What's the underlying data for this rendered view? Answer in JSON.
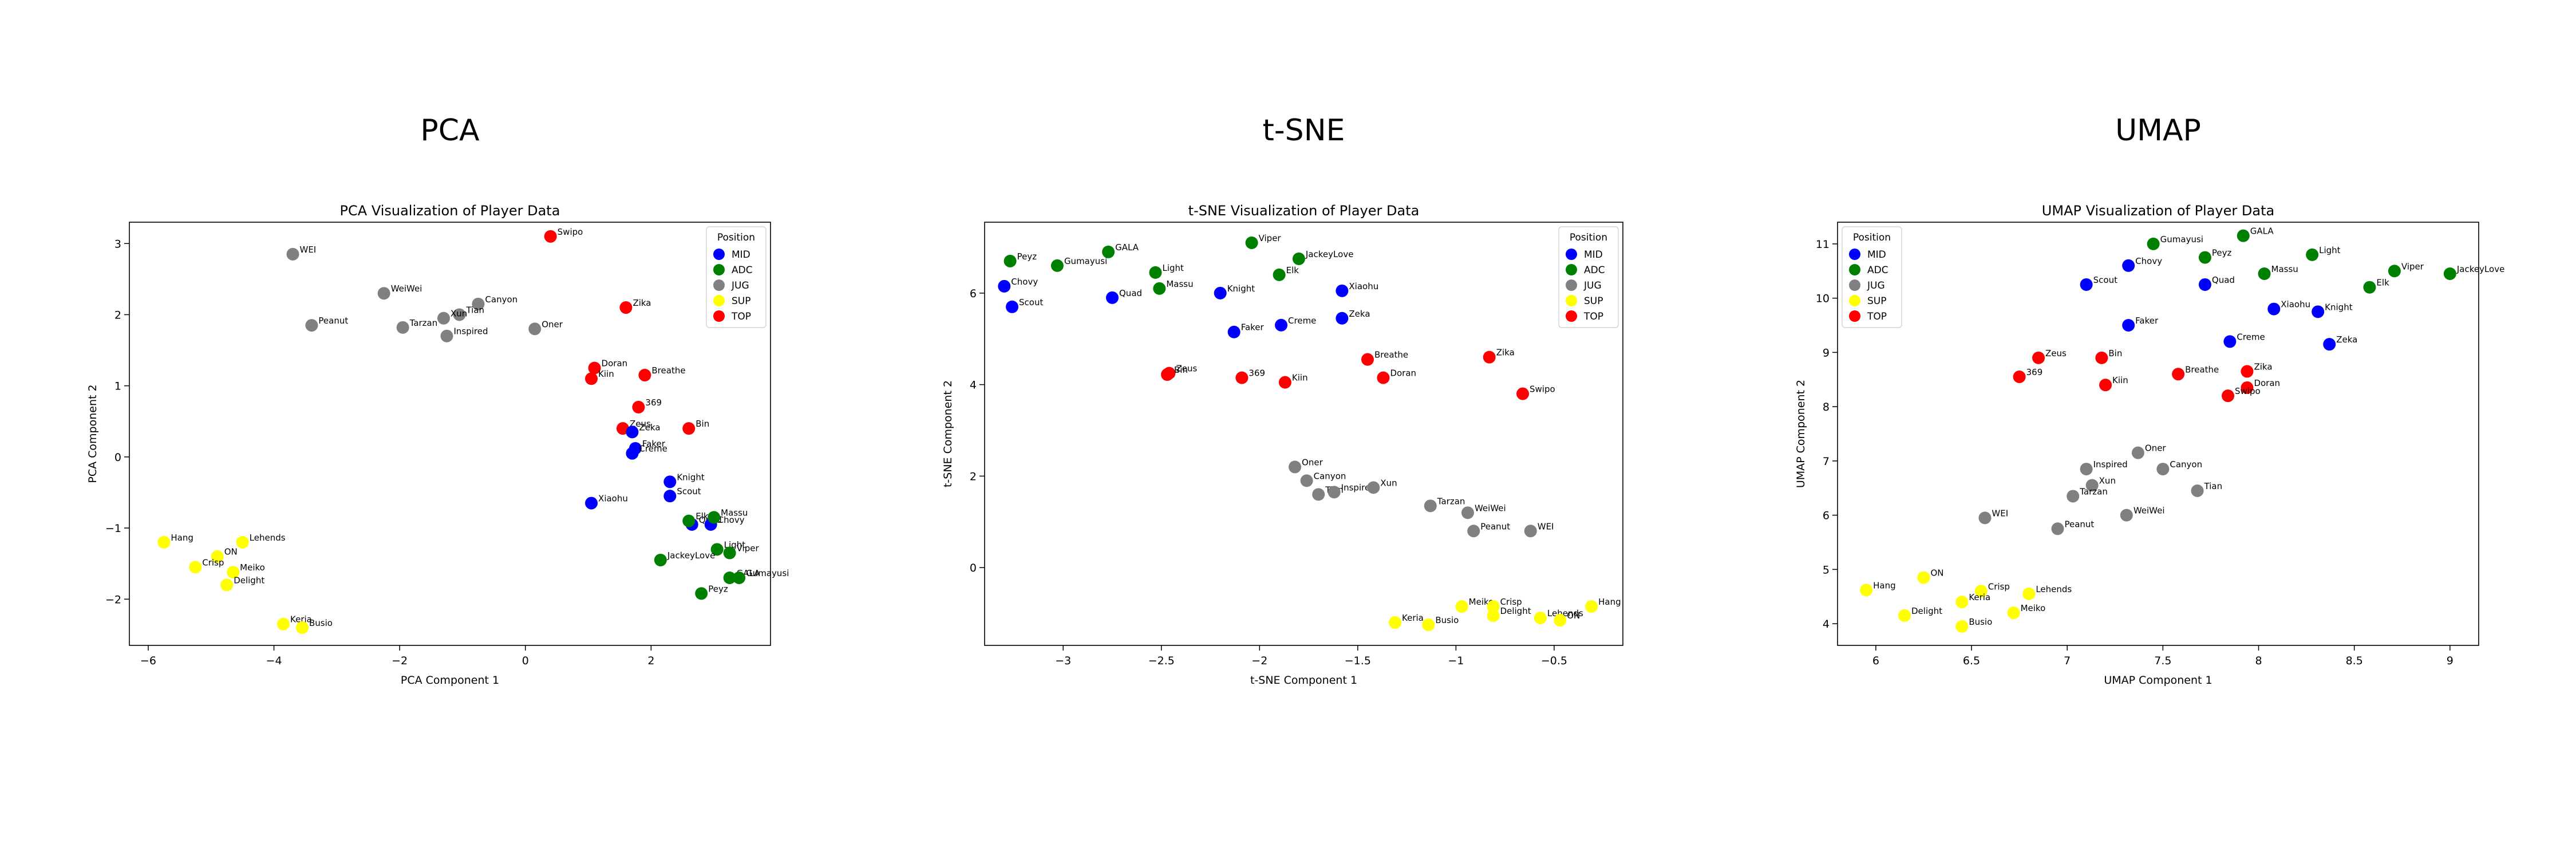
{
  "figures": [
    {
      "heading": "PCA"
    },
    {
      "heading": "t-SNE"
    },
    {
      "heading": "UMAP"
    }
  ],
  "colors": {
    "MID": "#0000ff",
    "ADC": "#008000",
    "JUG": "#808080",
    "SUP": "#ffff00",
    "TOP": "#ff0000"
  },
  "chart_data": [
    {
      "type": "scatter",
      "title": "PCA Visualization of Player Data",
      "xlabel": "PCA Component 1",
      "ylabel": "PCA Component 2",
      "xlim": [
        -6.3,
        3.9
      ],
      "ylim": [
        -2.65,
        3.3
      ],
      "xticks": [
        -6,
        -4,
        -2,
        0,
        2
      ],
      "yticks": [
        -2,
        -1,
        0,
        1,
        2,
        3
      ],
      "grid": false,
      "legend": {
        "title": "Position",
        "placement": "top-right"
      },
      "points": [
        {
          "label": "WEI",
          "x": -3.7,
          "y": 2.85,
          "position": "JUG"
        },
        {
          "label": "WeiWei",
          "x": -2.25,
          "y": 2.3,
          "position": "JUG"
        },
        {
          "label": "Canyon",
          "x": -0.75,
          "y": 2.15,
          "position": "JUG"
        },
        {
          "label": "Tian",
          "x": -1.05,
          "y": 2.0,
          "position": "JUG"
        },
        {
          "label": "Xun",
          "x": -1.3,
          "y": 1.95,
          "position": "JUG"
        },
        {
          "label": "Peanut",
          "x": -3.4,
          "y": 1.85,
          "position": "JUG"
        },
        {
          "label": "Tarzan",
          "x": -1.95,
          "y": 1.82,
          "position": "JUG"
        },
        {
          "label": "Oner",
          "x": 0.15,
          "y": 1.8,
          "position": "JUG"
        },
        {
          "label": "Inspired",
          "x": -1.25,
          "y": 1.7,
          "position": "JUG"
        },
        {
          "label": "Swipo",
          "x": 0.4,
          "y": 3.1,
          "position": "TOP"
        },
        {
          "label": "Zika",
          "x": 1.6,
          "y": 2.1,
          "position": "TOP"
        },
        {
          "label": "Doran",
          "x": 1.1,
          "y": 1.25,
          "position": "TOP"
        },
        {
          "label": "Kiin",
          "x": 1.05,
          "y": 1.1,
          "position": "TOP"
        },
        {
          "label": "Breathe",
          "x": 1.9,
          "y": 1.15,
          "position": "TOP"
        },
        {
          "label": "369",
          "x": 1.8,
          "y": 0.7,
          "position": "TOP"
        },
        {
          "label": "Bin",
          "x": 2.6,
          "y": 0.4,
          "position": "TOP"
        },
        {
          "label": "Zeus",
          "x": 1.55,
          "y": 0.4,
          "position": "TOP"
        },
        {
          "label": "Zeka",
          "x": 1.7,
          "y": 0.35,
          "position": "MID"
        },
        {
          "label": "Faker",
          "x": 1.75,
          "y": 0.12,
          "position": "MID"
        },
        {
          "label": "Creme",
          "x": 1.7,
          "y": 0.05,
          "position": "MID"
        },
        {
          "label": "Knight",
          "x": 2.3,
          "y": -0.35,
          "position": "MID"
        },
        {
          "label": "Scout",
          "x": 2.3,
          "y": -0.55,
          "position": "MID"
        },
        {
          "label": "Xiaohu",
          "x": 1.05,
          "y": -0.65,
          "position": "MID"
        },
        {
          "label": "Quad",
          "x": 2.65,
          "y": -0.95,
          "position": "MID"
        },
        {
          "label": "Chovy",
          "x": 2.95,
          "y": -0.95,
          "position": "MID"
        },
        {
          "label": "Elk",
          "x": 2.6,
          "y": -0.9,
          "position": "ADC"
        },
        {
          "label": "Massu",
          "x": 3.0,
          "y": -0.85,
          "position": "ADC"
        },
        {
          "label": "Light",
          "x": 3.05,
          "y": -1.3,
          "position": "ADC"
        },
        {
          "label": "Viper",
          "x": 3.25,
          "y": -1.35,
          "position": "ADC"
        },
        {
          "label": "JackeyLove",
          "x": 2.15,
          "y": -1.45,
          "position": "ADC"
        },
        {
          "label": "GALA",
          "x": 3.25,
          "y": -1.7,
          "position": "ADC"
        },
        {
          "label": "Gumayusi",
          "x": 3.4,
          "y": -1.7,
          "position": "ADC"
        },
        {
          "label": "Peyz",
          "x": 2.8,
          "y": -1.92,
          "position": "ADC"
        },
        {
          "label": "Hang",
          "x": -5.75,
          "y": -1.2,
          "position": "SUP"
        },
        {
          "label": "Lehends",
          "x": -4.5,
          "y": -1.2,
          "position": "SUP"
        },
        {
          "label": "ON",
          "x": -4.9,
          "y": -1.4,
          "position": "SUP"
        },
        {
          "label": "Crisp",
          "x": -5.25,
          "y": -1.55,
          "position": "SUP"
        },
        {
          "label": "Meiko",
          "x": -4.65,
          "y": -1.62,
          "position": "SUP"
        },
        {
          "label": "Delight",
          "x": -4.75,
          "y": -1.8,
          "position": "SUP"
        },
        {
          "label": "Keria",
          "x": -3.85,
          "y": -2.35,
          "position": "SUP"
        },
        {
          "label": "Busio",
          "x": -3.55,
          "y": -2.4,
          "position": "SUP"
        }
      ]
    },
    {
      "type": "scatter",
      "title": "t-SNE Visualization of Player Data",
      "xlabel": "t-SNE Component 1",
      "ylabel": "t-SNE Component 2",
      "xlim": [
        -3.4,
        -0.15
      ],
      "ylim": [
        -1.7,
        7.55
      ],
      "xticks": [
        -3.0,
        -2.5,
        -2.0,
        -1.5,
        -1.0,
        -0.5
      ],
      "yticks": [
        0,
        2,
        4,
        6
      ],
      "grid": false,
      "legend": {
        "title": "Position",
        "placement": "top-right"
      },
      "points": [
        {
          "label": "Peyz",
          "x": -3.27,
          "y": 6.7,
          "position": "ADC"
        },
        {
          "label": "Gumayusi",
          "x": -3.03,
          "y": 6.6,
          "position": "ADC"
        },
        {
          "label": "GALA",
          "x": -2.77,
          "y": 6.9,
          "position": "ADC"
        },
        {
          "label": "Light",
          "x": -2.53,
          "y": 6.45,
          "position": "ADC"
        },
        {
          "label": "Massu",
          "x": -2.51,
          "y": 6.1,
          "position": "ADC"
        },
        {
          "label": "Viper",
          "x": -2.04,
          "y": 7.1,
          "position": "ADC"
        },
        {
          "label": "JackeyLove",
          "x": -1.8,
          "y": 6.75,
          "position": "ADC"
        },
        {
          "label": "Elk",
          "x": -1.9,
          "y": 6.4,
          "position": "ADC"
        },
        {
          "label": "Chovy",
          "x": -3.3,
          "y": 6.15,
          "position": "MID"
        },
        {
          "label": "Scout",
          "x": -3.26,
          "y": 5.7,
          "position": "MID"
        },
        {
          "label": "Quad",
          "x": -2.75,
          "y": 5.9,
          "position": "MID"
        },
        {
          "label": "Knight",
          "x": -2.2,
          "y": 6.0,
          "position": "MID"
        },
        {
          "label": "Faker",
          "x": -2.13,
          "y": 5.15,
          "position": "MID"
        },
        {
          "label": "Creme",
          "x": -1.89,
          "y": 5.3,
          "position": "MID"
        },
        {
          "label": "Xiaohu",
          "x": -1.58,
          "y": 6.05,
          "position": "MID"
        },
        {
          "label": "Zeka",
          "x": -1.58,
          "y": 5.45,
          "position": "MID"
        },
        {
          "label": "Zeus",
          "x": -2.46,
          "y": 4.25,
          "position": "TOP"
        },
        {
          "label": "Bin",
          "x": -2.47,
          "y": 4.22,
          "position": "TOP"
        },
        {
          "label": "369",
          "x": -2.09,
          "y": 4.15,
          "position": "TOP"
        },
        {
          "label": "Kiin",
          "x": -1.87,
          "y": 4.05,
          "position": "TOP"
        },
        {
          "label": "Breathe",
          "x": -1.45,
          "y": 4.55,
          "position": "TOP"
        },
        {
          "label": "Doran",
          "x": -1.37,
          "y": 4.15,
          "position": "TOP"
        },
        {
          "label": "Zika",
          "x": -0.83,
          "y": 4.6,
          "position": "TOP"
        },
        {
          "label": "Swipo",
          "x": -0.66,
          "y": 3.8,
          "position": "TOP"
        },
        {
          "label": "Oner",
          "x": -1.82,
          "y": 2.2,
          "position": "JUG"
        },
        {
          "label": "Canyon",
          "x": -1.76,
          "y": 1.9,
          "position": "JUG"
        },
        {
          "label": "Tian",
          "x": -1.7,
          "y": 1.6,
          "position": "JUG"
        },
        {
          "label": "Inspired",
          "x": -1.62,
          "y": 1.65,
          "position": "JUG"
        },
        {
          "label": "Xun",
          "x": -1.42,
          "y": 1.75,
          "position": "JUG"
        },
        {
          "label": "Tarzan",
          "x": -1.13,
          "y": 1.35,
          "position": "JUG"
        },
        {
          "label": "WeiWei",
          "x": -0.94,
          "y": 1.2,
          "position": "JUG"
        },
        {
          "label": "Peanut",
          "x": -0.91,
          "y": 0.8,
          "position": "JUG"
        },
        {
          "label": "WEI",
          "x": -0.62,
          "y": 0.8,
          "position": "JUG"
        },
        {
          "label": "Keria",
          "x": -1.31,
          "y": -1.2,
          "position": "SUP"
        },
        {
          "label": "Busio",
          "x": -1.14,
          "y": -1.25,
          "position": "SUP"
        },
        {
          "label": "Meiko",
          "x": -0.97,
          "y": -0.85,
          "position": "SUP"
        },
        {
          "label": "Crisp",
          "x": -0.81,
          "y": -0.85,
          "position": "SUP"
        },
        {
          "label": "Delight",
          "x": -0.81,
          "y": -1.05,
          "position": "SUP"
        },
        {
          "label": "Lehends",
          "x": -0.57,
          "y": -1.1,
          "position": "SUP"
        },
        {
          "label": "ON",
          "x": -0.47,
          "y": -1.15,
          "position": "SUP"
        },
        {
          "label": "Hang",
          "x": -0.31,
          "y": -0.85,
          "position": "SUP"
        }
      ]
    },
    {
      "type": "scatter",
      "title": "UMAP Visualization of Player Data",
      "xlabel": "UMAP Component 1",
      "ylabel": "UMAP Component 2",
      "xlim": [
        5.8,
        9.15
      ],
      "ylim": [
        3.6,
        11.4
      ],
      "xticks": [
        6.0,
        6.5,
        7.0,
        7.5,
        8.0,
        8.5,
        9.0
      ],
      "yticks": [
        4,
        5,
        6,
        7,
        8,
        9,
        10,
        11
      ],
      "grid": false,
      "legend": {
        "title": "Position",
        "placement": "top-left"
      },
      "points": [
        {
          "label": "GALA",
          "x": 7.92,
          "y": 11.15,
          "position": "ADC"
        },
        {
          "label": "Gumayusi",
          "x": 7.45,
          "y": 11.0,
          "position": "ADC"
        },
        {
          "label": "Peyz",
          "x": 7.72,
          "y": 10.75,
          "position": "ADC"
        },
        {
          "label": "Light",
          "x": 8.28,
          "y": 10.8,
          "position": "ADC"
        },
        {
          "label": "Massu",
          "x": 8.03,
          "y": 10.45,
          "position": "ADC"
        },
        {
          "label": "Viper",
          "x": 8.71,
          "y": 10.5,
          "position": "ADC"
        },
        {
          "label": "JackeyLove",
          "x": 9.0,
          "y": 10.45,
          "position": "ADC"
        },
        {
          "label": "Elk",
          "x": 8.58,
          "y": 10.2,
          "position": "ADC"
        },
        {
          "label": "Chovy",
          "x": 7.32,
          "y": 10.6,
          "position": "MID"
        },
        {
          "label": "Scout",
          "x": 7.1,
          "y": 10.25,
          "position": "MID"
        },
        {
          "label": "Quad",
          "x": 7.72,
          "y": 10.25,
          "position": "MID"
        },
        {
          "label": "Xiaohu",
          "x": 8.08,
          "y": 9.8,
          "position": "MID"
        },
        {
          "label": "Knight",
          "x": 8.31,
          "y": 9.75,
          "position": "MID"
        },
        {
          "label": "Faker",
          "x": 7.32,
          "y": 9.5,
          "position": "MID"
        },
        {
          "label": "Creme",
          "x": 7.85,
          "y": 9.2,
          "position": "MID"
        },
        {
          "label": "Zeka",
          "x": 8.37,
          "y": 9.15,
          "position": "MID"
        },
        {
          "label": "Zeus",
          "x": 6.85,
          "y": 8.9,
          "position": "TOP"
        },
        {
          "label": "Bin",
          "x": 7.18,
          "y": 8.9,
          "position": "TOP"
        },
        {
          "label": "369",
          "x": 6.75,
          "y": 8.55,
          "position": "TOP"
        },
        {
          "label": "Kiin",
          "x": 7.2,
          "y": 8.4,
          "position": "TOP"
        },
        {
          "label": "Breathe",
          "x": 7.58,
          "y": 8.6,
          "position": "TOP"
        },
        {
          "label": "Zika",
          "x": 7.94,
          "y": 8.65,
          "position": "TOP"
        },
        {
          "label": "Doran",
          "x": 7.94,
          "y": 8.35,
          "position": "TOP"
        },
        {
          "label": "Swipo",
          "x": 7.84,
          "y": 8.2,
          "position": "TOP"
        },
        {
          "label": "Oner",
          "x": 7.37,
          "y": 7.15,
          "position": "JUG"
        },
        {
          "label": "Inspired",
          "x": 7.1,
          "y": 6.85,
          "position": "JUG"
        },
        {
          "label": "Canyon",
          "x": 7.5,
          "y": 6.85,
          "position": "JUG"
        },
        {
          "label": "Xun",
          "x": 7.13,
          "y": 6.55,
          "position": "JUG"
        },
        {
          "label": "Tarzan",
          "x": 7.03,
          "y": 6.35,
          "position": "JUG"
        },
        {
          "label": "Tian",
          "x": 7.68,
          "y": 6.45,
          "position": "JUG"
        },
        {
          "label": "WEI",
          "x": 6.57,
          "y": 5.95,
          "position": "JUG"
        },
        {
          "label": "WeiWei",
          "x": 7.31,
          "y": 6.0,
          "position": "JUG"
        },
        {
          "label": "Peanut",
          "x": 6.95,
          "y": 5.75,
          "position": "JUG"
        },
        {
          "label": "Hang",
          "x": 5.95,
          "y": 4.62,
          "position": "SUP"
        },
        {
          "label": "ON",
          "x": 6.25,
          "y": 4.85,
          "position": "SUP"
        },
        {
          "label": "Crisp",
          "x": 6.55,
          "y": 4.6,
          "position": "SUP"
        },
        {
          "label": "Lehends",
          "x": 6.8,
          "y": 4.55,
          "position": "SUP"
        },
        {
          "label": "Keria",
          "x": 6.45,
          "y": 4.4,
          "position": "SUP"
        },
        {
          "label": "Delight",
          "x": 6.15,
          "y": 4.15,
          "position": "SUP"
        },
        {
          "label": "Meiko",
          "x": 6.72,
          "y": 4.2,
          "position": "SUP"
        },
        {
          "label": "Busio",
          "x": 6.45,
          "y": 3.95,
          "position": "SUP"
        }
      ]
    }
  ]
}
